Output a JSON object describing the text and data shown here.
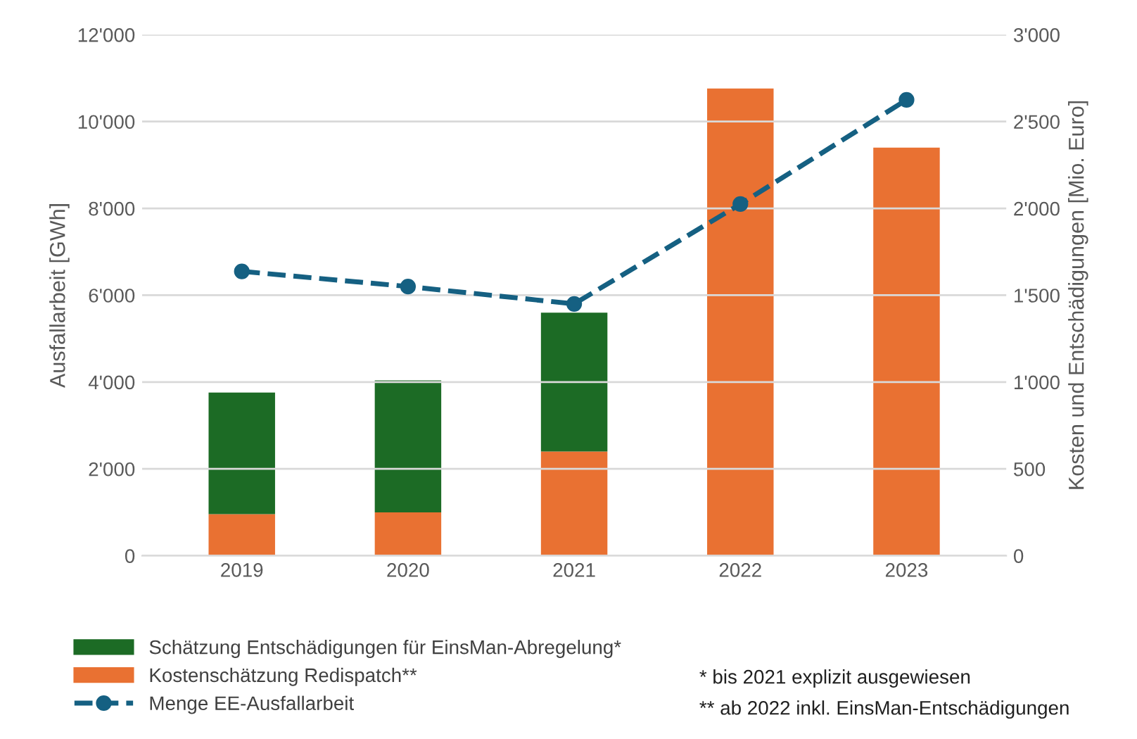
{
  "chart_data": {
    "type": "bar",
    "stacked": true,
    "categories": [
      "2019",
      "2020",
      "2021",
      "2022",
      "2023"
    ],
    "series": [
      {
        "name": "Kostenschätzung Redispatch**",
        "color": "#e97132",
        "axis": "y2",
        "values": [
          240,
          250,
          600,
          2690,
          2350
        ]
      },
      {
        "name": "Schätzung Entschädigungen für EinsMan-Abregelung*",
        "color": "#1c6b25",
        "axis": "y2",
        "values": [
          700,
          760,
          800,
          0,
          0
        ]
      },
      {
        "name": "Menge EE-Ausfallarbeit",
        "type": "line",
        "color": "#156082",
        "values": [
          6550,
          6200,
          5800,
          8100,
          10500
        ],
        "marker": "circle",
        "line_style": "dashed"
      }
    ],
    "ylabel": "Ausfallarbeit [GWh]",
    "y2label": "Kosten und Entschädigungen [Mio. Euro]",
    "ylim": [
      0,
      12000
    ],
    "yticks": [
      0,
      {
        "value": 2000,
        "label": "2'000"
      },
      {
        "value": 4000,
        "label": "4'000"
      },
      {
        "value": 6000,
        "label": "6'000"
      },
      {
        "value": 8000,
        "label": "8'000"
      },
      {
        "value": 10000,
        "label": "10'000"
      },
      {
        "value": 12000,
        "label": "12'000"
      }
    ],
    "y2lim": [
      0,
      3000
    ],
    "y2ticks": [
      0,
      500,
      {
        "value": 1000,
        "label": "1'000"
      },
      {
        "value": 1500,
        "label": "1'500"
      },
      {
        "value": 2000,
        "label": "2'000"
      },
      {
        "value": 2500,
        "label": "2'500"
      },
      {
        "value": 3000,
        "label": "3'000"
      }
    ],
    "grid": "y",
    "legend": "bottom left",
    "annotations": [
      "* bis 2021 explizit ausgewiesen",
      "** ab 2022 inkl. EinsMan-Entschädigungen"
    ]
  }
}
